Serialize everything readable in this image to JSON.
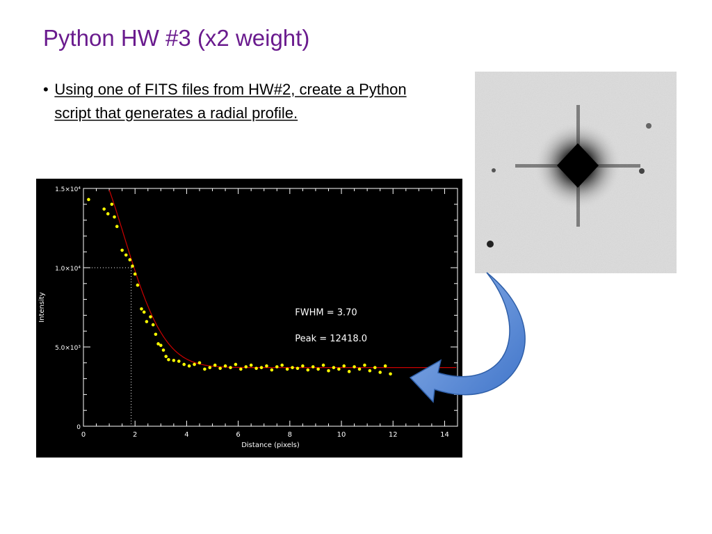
{
  "slide": {
    "title": "Python HW #3 (x2 weight)",
    "bullets": [
      "Using one of FITS files from HW#2, create a Python script that generates a radial profile."
    ]
  },
  "star_image": {
    "icon": "star-psf-grayscale-image"
  },
  "arrow": {
    "icon": "curved-arrow-icon",
    "color": "#4f86d6"
  },
  "chart_data": {
    "type": "scatter",
    "xlabel": "Distance (pixels)",
    "ylabel": "Intensity",
    "xlim": [
      0,
      14.5
    ],
    "ylim": [
      0,
      15000
    ],
    "x_ticks": [
      0,
      2,
      4,
      6,
      8,
      10,
      12,
      14
    ],
    "y_ticks": [
      {
        "value": 0,
        "label": "0"
      },
      {
        "value": 5000,
        "label": "5.0×10³"
      },
      {
        "value": 10000,
        "label": "1.0×10⁴"
      },
      {
        "value": 15000,
        "label": "1.5×10⁴"
      }
    ],
    "annotations": [
      {
        "text": "FWHM =   3.70",
        "x": 8.2,
        "y": 7000
      },
      {
        "text": "Peak =   12418.0",
        "x": 8.2,
        "y": 5350
      }
    ],
    "fwhm_marker": {
      "x": 1.85,
      "y": 10000
    },
    "fit": {
      "peak": 12418.0,
      "fwhm": 3.7,
      "background": 3700
    },
    "colors": {
      "background": "#000000",
      "points": "#ffff00",
      "fit_line": "#cc0000",
      "axes": "#ffffff"
    },
    "series": [
      {
        "x": [
          0.2,
          0.8,
          0.95,
          1.1,
          1.2,
          1.3,
          1.5,
          1.65,
          1.8,
          1.9,
          2.0,
          2.1,
          2.25,
          2.35,
          2.45,
          2.6,
          2.7,
          2.8,
          2.9,
          3.0,
          3.1,
          3.2,
          3.3,
          3.5,
          3.7,
          3.9,
          4.1,
          4.3,
          4.5,
          4.7,
          4.9,
          5.1,
          5.3,
          5.5,
          5.7,
          5.9,
          6.1,
          6.3,
          6.5,
          6.7,
          6.9,
          7.1,
          7.3,
          7.5,
          7.7,
          7.9,
          8.1,
          8.3,
          8.5,
          8.7,
          8.9,
          9.1,
          9.3,
          9.5,
          9.7,
          9.9,
          10.1,
          10.3,
          10.5,
          10.7,
          10.9,
          11.1,
          11.3,
          11.5,
          11.7,
          11.9
        ],
        "y": [
          14300,
          13700,
          13400,
          14000,
          13200,
          12600,
          11100,
          10800,
          10500,
          10100,
          9600,
          8900,
          7400,
          7200,
          6600,
          6900,
          6400,
          5800,
          5200,
          5100,
          4800,
          4400,
          4200,
          4150,
          4100,
          3900,
          3800,
          3900,
          4000,
          3600,
          3700,
          3850,
          3650,
          3800,
          3700,
          3900,
          3600,
          3750,
          3850,
          3650,
          3700,
          3800,
          3550,
          3750,
          3850,
          3600,
          3700,
          3650,
          3800,
          3550,
          3750,
          3600,
          3850,
          3500,
          3700,
          3600,
          3800,
          3450,
          3750,
          3600,
          3850,
          3500,
          3700,
          3400,
          3800,
          3300
        ]
      }
    ]
  }
}
